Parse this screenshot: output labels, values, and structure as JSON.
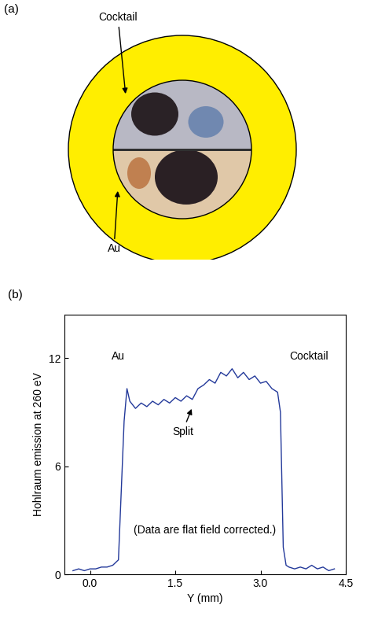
{
  "diagram": {
    "panel_label": "(a)",
    "labels": [
      "Cocktail",
      "Au"
    ]
  },
  "chart_data": {
    "type": "line",
    "panel_label": "(b)",
    "xlabel": "Y (mm)",
    "ylabel": "Hohlraum emission at 260 eV",
    "annotations": [
      "Au",
      "Cocktail",
      "Split",
      "(Data are flat field corrected.)"
    ],
    "xlim": [
      -0.45,
      4.5
    ],
    "xticks": [
      0.0,
      1.5,
      3.0,
      4.5
    ],
    "ylim": [
      0,
      14.4
    ],
    "yticks": [
      0,
      6,
      12
    ],
    "grid": false,
    "series": [
      {
        "name": "Hohlraum emission",
        "color": "#23399a",
        "x": [
          -0.3,
          -0.2,
          -0.1,
          0.0,
          0.1,
          0.2,
          0.3,
          0.4,
          0.5,
          0.6,
          0.65,
          0.7,
          0.8,
          0.9,
          1.0,
          1.1,
          1.2,
          1.3,
          1.4,
          1.5,
          1.6,
          1.7,
          1.8,
          1.9,
          2.0,
          2.1,
          2.2,
          2.3,
          2.4,
          2.5,
          2.6,
          2.7,
          2.8,
          2.9,
          3.0,
          3.1,
          3.2,
          3.3,
          3.35,
          3.4,
          3.45,
          3.5,
          3.6,
          3.7,
          3.8,
          3.9,
          4.0,
          4.1,
          4.2,
          4.3
        ],
        "values": [
          0.2,
          0.3,
          0.2,
          0.3,
          0.3,
          0.4,
          0.4,
          0.5,
          0.8,
          8.5,
          10.3,
          9.6,
          9.2,
          9.5,
          9.3,
          9.6,
          9.4,
          9.7,
          9.5,
          9.8,
          9.6,
          9.9,
          9.7,
          10.3,
          10.5,
          10.8,
          10.6,
          11.2,
          11.0,
          11.4,
          10.9,
          11.2,
          10.8,
          11.0,
          10.6,
          10.7,
          10.3,
          10.1,
          9.0,
          1.5,
          0.5,
          0.4,
          0.3,
          0.4,
          0.3,
          0.5,
          0.3,
          0.4,
          0.2,
          0.3
        ]
      }
    ]
  }
}
